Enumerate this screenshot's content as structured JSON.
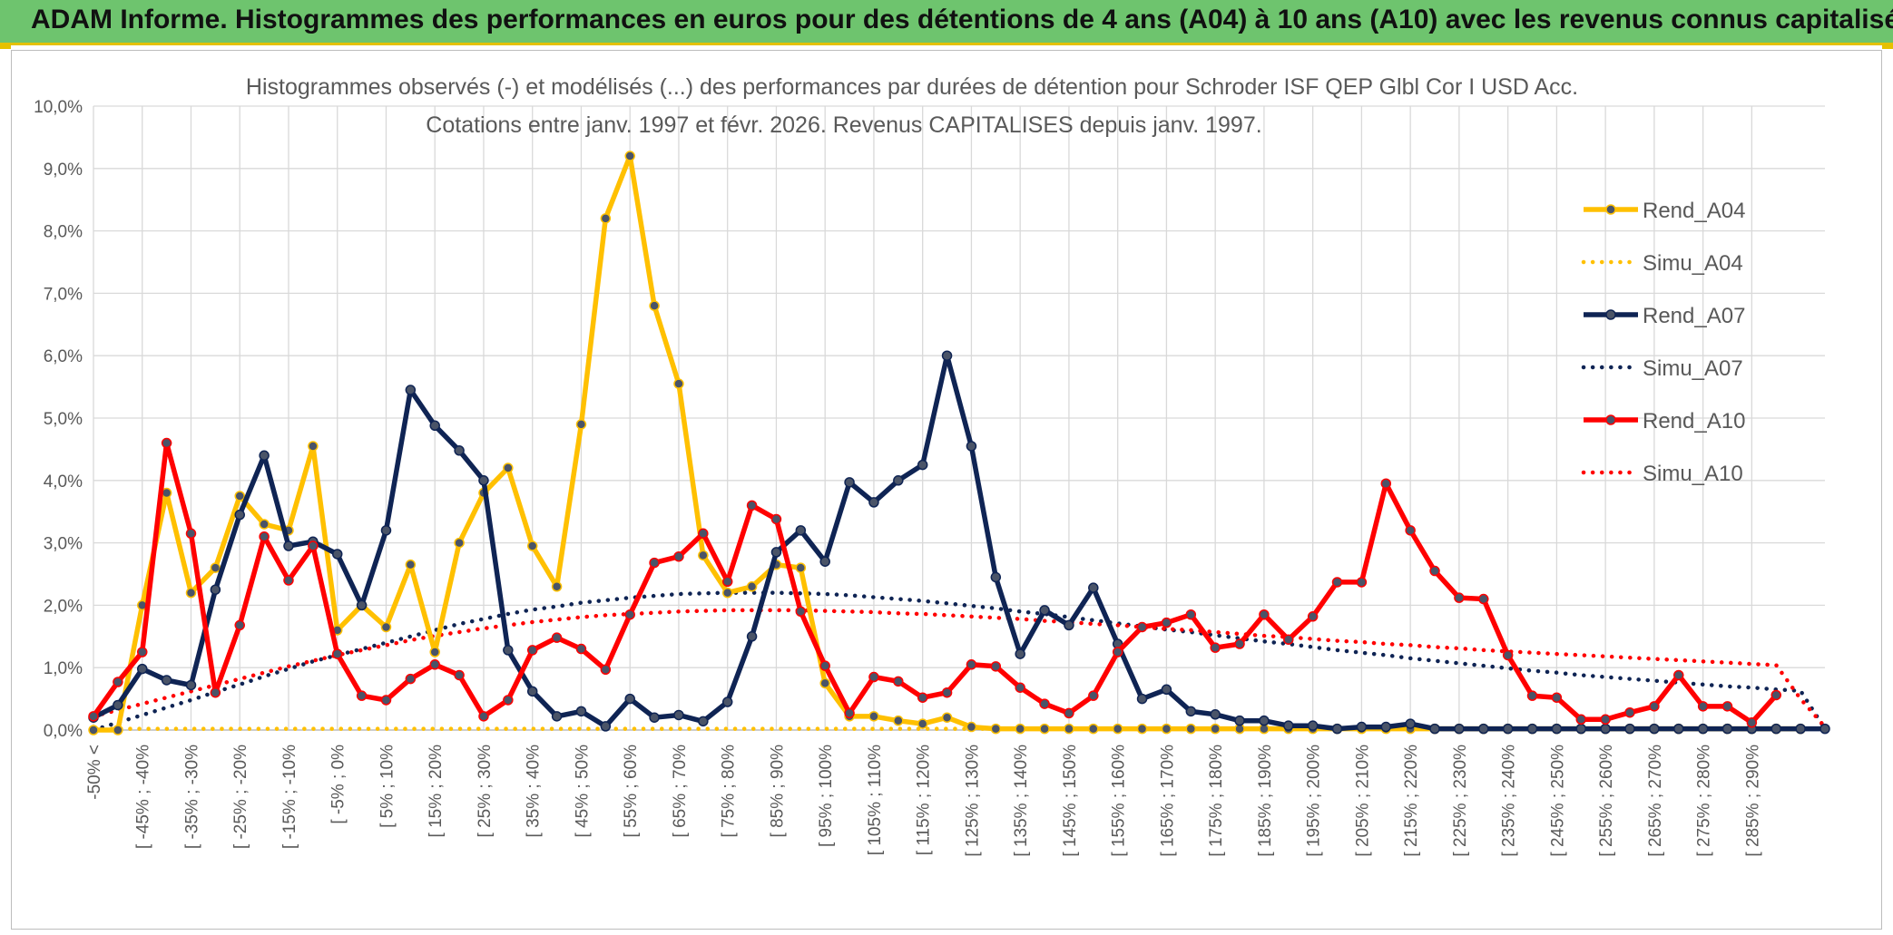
{
  "header": {
    "title": "ADAM Informe. Histogrammes des performances en euros pour des détentions de 4 ans (A04) à 10 ans (A10) avec les revenus connus capitalisés"
  },
  "chart_data": {
    "type": "line",
    "title": "Histogrammes observés (-) et modélisés (...) des performances par durées de détention pour Schroder ISF QEP Glbl Cor I USD Acc.",
    "subtitle": "Cotations entre janv. 1997 et févr. 2026. Revenus CAPITALISES depuis janv. 1997.",
    "xlabel": "",
    "ylabel": "",
    "ylim": [
      0,
      10
    ],
    "yticks": [
      "0,0%",
      "1,0%",
      "2,0%",
      "3,0%",
      "4,0%",
      "5,0%",
      "6,0%",
      "7,0%",
      "8,0%",
      "9,0%",
      "10,0%"
    ],
    "grid": true,
    "legend_position": "right",
    "x_labels": [
      "-50% <",
      "[ -45% ; -40%",
      "[ -35% ; -30%",
      "[ -25% ; -20%",
      "[ -15% ; -10%",
      "[ -5% ; 0%",
      "[ 5% ; 10%",
      "[ 15% ; 20%",
      "[ 25% ; 30%",
      "[ 35% ; 40%",
      "[ 45% ; 50%",
      "[ 55% ; 60%",
      "[ 65% ; 70%",
      "[ 75% ; 80%",
      "[ 85% ; 90%",
      "[ 95% ; 100%",
      "[ 105% ; 110%",
      "[ 115% ; 120%",
      "[ 125% ; 130%",
      "[ 135% ; 140%",
      "[ 145% ; 150%",
      "[ 155% ; 160%",
      "[ 165% ; 170%",
      "[ 175% ; 180%",
      "[ 185% ; 190%",
      "[ 195% ; 200%",
      "[ 205% ; 210%",
      "[ 215% ; 220%",
      "[ 225% ; 230%",
      "[ 235% ; 240%",
      "[ 245% ; 250%",
      "[ 255% ; 260%",
      "[ 265% ; 270%",
      "[ 275% ; 280%",
      "[ 285% ; 290%"
    ],
    "series": [
      {
        "name": "Rend_A04",
        "style": "solid",
        "markers": true,
        "color": "#ffc000",
        "values": [
          0.0,
          0.0,
          2.0,
          3.8,
          2.2,
          2.6,
          3.75,
          3.3,
          3.2,
          4.55,
          1.6,
          2.0,
          1.65,
          2.65,
          1.25,
          3.0,
          3.8,
          4.2,
          2.95,
          2.3,
          4.9,
          8.2,
          9.2,
          6.8,
          5.55,
          2.8,
          2.2,
          2.3,
          2.65,
          2.6,
          0.75,
          0.22,
          0.22,
          0.15,
          0.1,
          0.2,
          0.05,
          0.02,
          0.02,
          0.02,
          0.02,
          0.02,
          0.02,
          0.02,
          0.02,
          0.02,
          0.02,
          0.02,
          0.02,
          0.02,
          0.02,
          0.02,
          0.02,
          0.02,
          0.02,
          0.02,
          0.02,
          0.02,
          0.02,
          0.02,
          0.02,
          0.02,
          0.02,
          0.02,
          0.02,
          0.02,
          0.02,
          0.02,
          0.02,
          0.02,
          0.02,
          null
        ]
      },
      {
        "name": "Simu_A04",
        "style": "dotted",
        "markers": false,
        "color": "#ffc000",
        "values": [
          0.02,
          0.02,
          0.02,
          0.02,
          0.02,
          0.02,
          0.02,
          0.02,
          0.02,
          0.02,
          0.02,
          0.02,
          0.02,
          0.02,
          0.02,
          0.02,
          0.02,
          0.02,
          0.02,
          0.02,
          0.02,
          0.02,
          0.02,
          0.02,
          0.02,
          0.02,
          0.02,
          0.02,
          0.02,
          0.02,
          0.02,
          0.02,
          0.02,
          0.02,
          0.02,
          0.02,
          0.02,
          0.02,
          0.02,
          0.02,
          0.02,
          0.02,
          0.02,
          0.02,
          0.02,
          0.02,
          0.02,
          0.02,
          0.02,
          0.02,
          0.02,
          0.02,
          0.02,
          0.02,
          0.02,
          0.02,
          0.02,
          0.02,
          0.02,
          0.02,
          0.02,
          0.02,
          0.02,
          0.02,
          0.02,
          0.02,
          0.02,
          0.02,
          0.02,
          0.02,
          0.02,
          0.02
        ]
      },
      {
        "name": "Rend_A07",
        "style": "solid",
        "markers": true,
        "color": "#0f2454",
        "values": [
          0.2,
          0.4,
          0.98,
          0.8,
          0.72,
          2.25,
          3.45,
          4.4,
          2.95,
          3.02,
          2.82,
          2.0,
          3.2,
          5.45,
          4.88,
          4.48,
          4.0,
          1.28,
          0.62,
          0.22,
          0.3,
          0.06,
          0.5,
          0.2,
          0.24,
          0.14,
          0.45,
          1.5,
          2.85,
          3.2,
          2.7,
          3.97,
          3.65,
          4.0,
          4.25,
          6.0,
          4.55,
          2.45,
          1.22,
          1.92,
          1.68,
          2.28,
          1.38,
          0.5,
          0.65,
          0.3,
          0.25,
          0.15,
          0.15,
          0.07,
          0.07,
          0.02,
          0.05,
          0.05,
          0.1,
          0.02,
          0.02,
          0.02,
          0.02,
          0.02,
          0.02,
          0.02,
          0.02,
          0.02,
          0.02,
          0.02,
          0.02,
          0.02,
          0.02,
          0.02,
          0.02,
          0.02
        ]
      },
      {
        "name": "Simu_A07",
        "style": "dotted",
        "markers": false,
        "color": "#0f2454",
        "values": [
          0.0,
          0.12,
          0.24,
          0.36,
          0.48,
          0.61,
          0.73,
          0.86,
          0.98,
          1.1,
          1.2,
          1.3,
          1.4,
          1.5,
          1.6,
          1.7,
          1.78,
          1.86,
          1.93,
          1.98,
          2.04,
          2.08,
          2.12,
          2.15,
          2.18,
          2.19,
          2.2,
          2.2,
          2.2,
          2.19,
          2.18,
          2.16,
          2.13,
          2.1,
          2.07,
          2.03,
          1.99,
          1.95,
          1.9,
          1.86,
          1.81,
          1.76,
          1.71,
          1.66,
          1.61,
          1.57,
          1.52,
          1.47,
          1.42,
          1.38,
          1.33,
          1.28,
          1.24,
          1.2,
          1.15,
          1.11,
          1.07,
          1.03,
          0.99,
          0.95,
          0.92,
          0.88,
          0.85,
          0.82,
          0.79,
          0.76,
          0.73,
          0.7,
          0.68,
          0.65,
          0.63,
          0.02
        ]
      },
      {
        "name": "Rend_A10",
        "style": "solid",
        "markers": true,
        "color": "#ff0000",
        "values": [
          0.22,
          0.77,
          1.25,
          4.6,
          3.15,
          0.6,
          1.68,
          3.1,
          2.4,
          2.95,
          1.22,
          0.55,
          0.48,
          0.82,
          1.05,
          0.88,
          0.22,
          0.48,
          1.28,
          1.48,
          1.3,
          0.97,
          1.85,
          2.68,
          2.78,
          3.15,
          2.38,
          3.6,
          3.38,
          1.9,
          1.03,
          0.27,
          0.85,
          0.78,
          0.52,
          0.6,
          1.05,
          1.02,
          0.68,
          0.42,
          0.27,
          0.55,
          1.25,
          1.65,
          1.72,
          1.85,
          1.32,
          1.38,
          1.85,
          1.45,
          1.82,
          2.37,
          2.37,
          3.95,
          3.2,
          2.55,
          2.12,
          2.1,
          1.2,
          0.55,
          0.52,
          0.17,
          0.17,
          0.28,
          0.38,
          0.88,
          0.38,
          0.38,
          0.12,
          0.56,
          null,
          null
        ]
      },
      {
        "name": "Simu_A10",
        "style": "dotted",
        "markers": false,
        "color": "#ff0000",
        "values": [
          0.22,
          0.32,
          0.42,
          0.52,
          0.62,
          0.72,
          0.82,
          0.92,
          1.02,
          1.11,
          1.2,
          1.28,
          1.36,
          1.44,
          1.51,
          1.57,
          1.63,
          1.68,
          1.73,
          1.77,
          1.81,
          1.84,
          1.86,
          1.88,
          1.9,
          1.91,
          1.92,
          1.92,
          1.92,
          1.92,
          1.91,
          1.9,
          1.89,
          1.87,
          1.86,
          1.84,
          1.82,
          1.8,
          1.78,
          1.75,
          1.73,
          1.7,
          1.68,
          1.65,
          1.62,
          1.6,
          1.57,
          1.54,
          1.51,
          1.49,
          1.46,
          1.43,
          1.41,
          1.38,
          1.36,
          1.33,
          1.31,
          1.28,
          1.26,
          1.24,
          1.22,
          1.2,
          1.18,
          1.16,
          1.14,
          1.12,
          1.1,
          1.08,
          1.06,
          1.04,
          0.5,
          0.05
        ]
      }
    ]
  }
}
